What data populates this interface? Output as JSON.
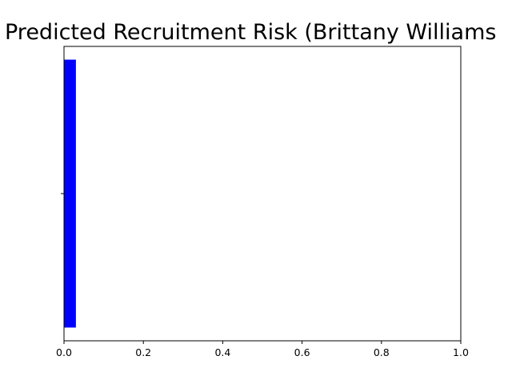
{
  "chart_data": {
    "type": "bar",
    "orientation": "horizontal",
    "title": "Predicted Recruitment Risk (Brittany Williams",
    "xlabel": "",
    "ylabel": "",
    "xlim": [
      0.0,
      1.0
    ],
    "x_ticks": [
      "0.0",
      "0.2",
      "0.4",
      "0.6",
      "0.8",
      "1.0"
    ],
    "categories": [
      ""
    ],
    "values": [
      0.03
    ],
    "bar_color": "#0000ff",
    "grid": false,
    "legend": "none"
  }
}
